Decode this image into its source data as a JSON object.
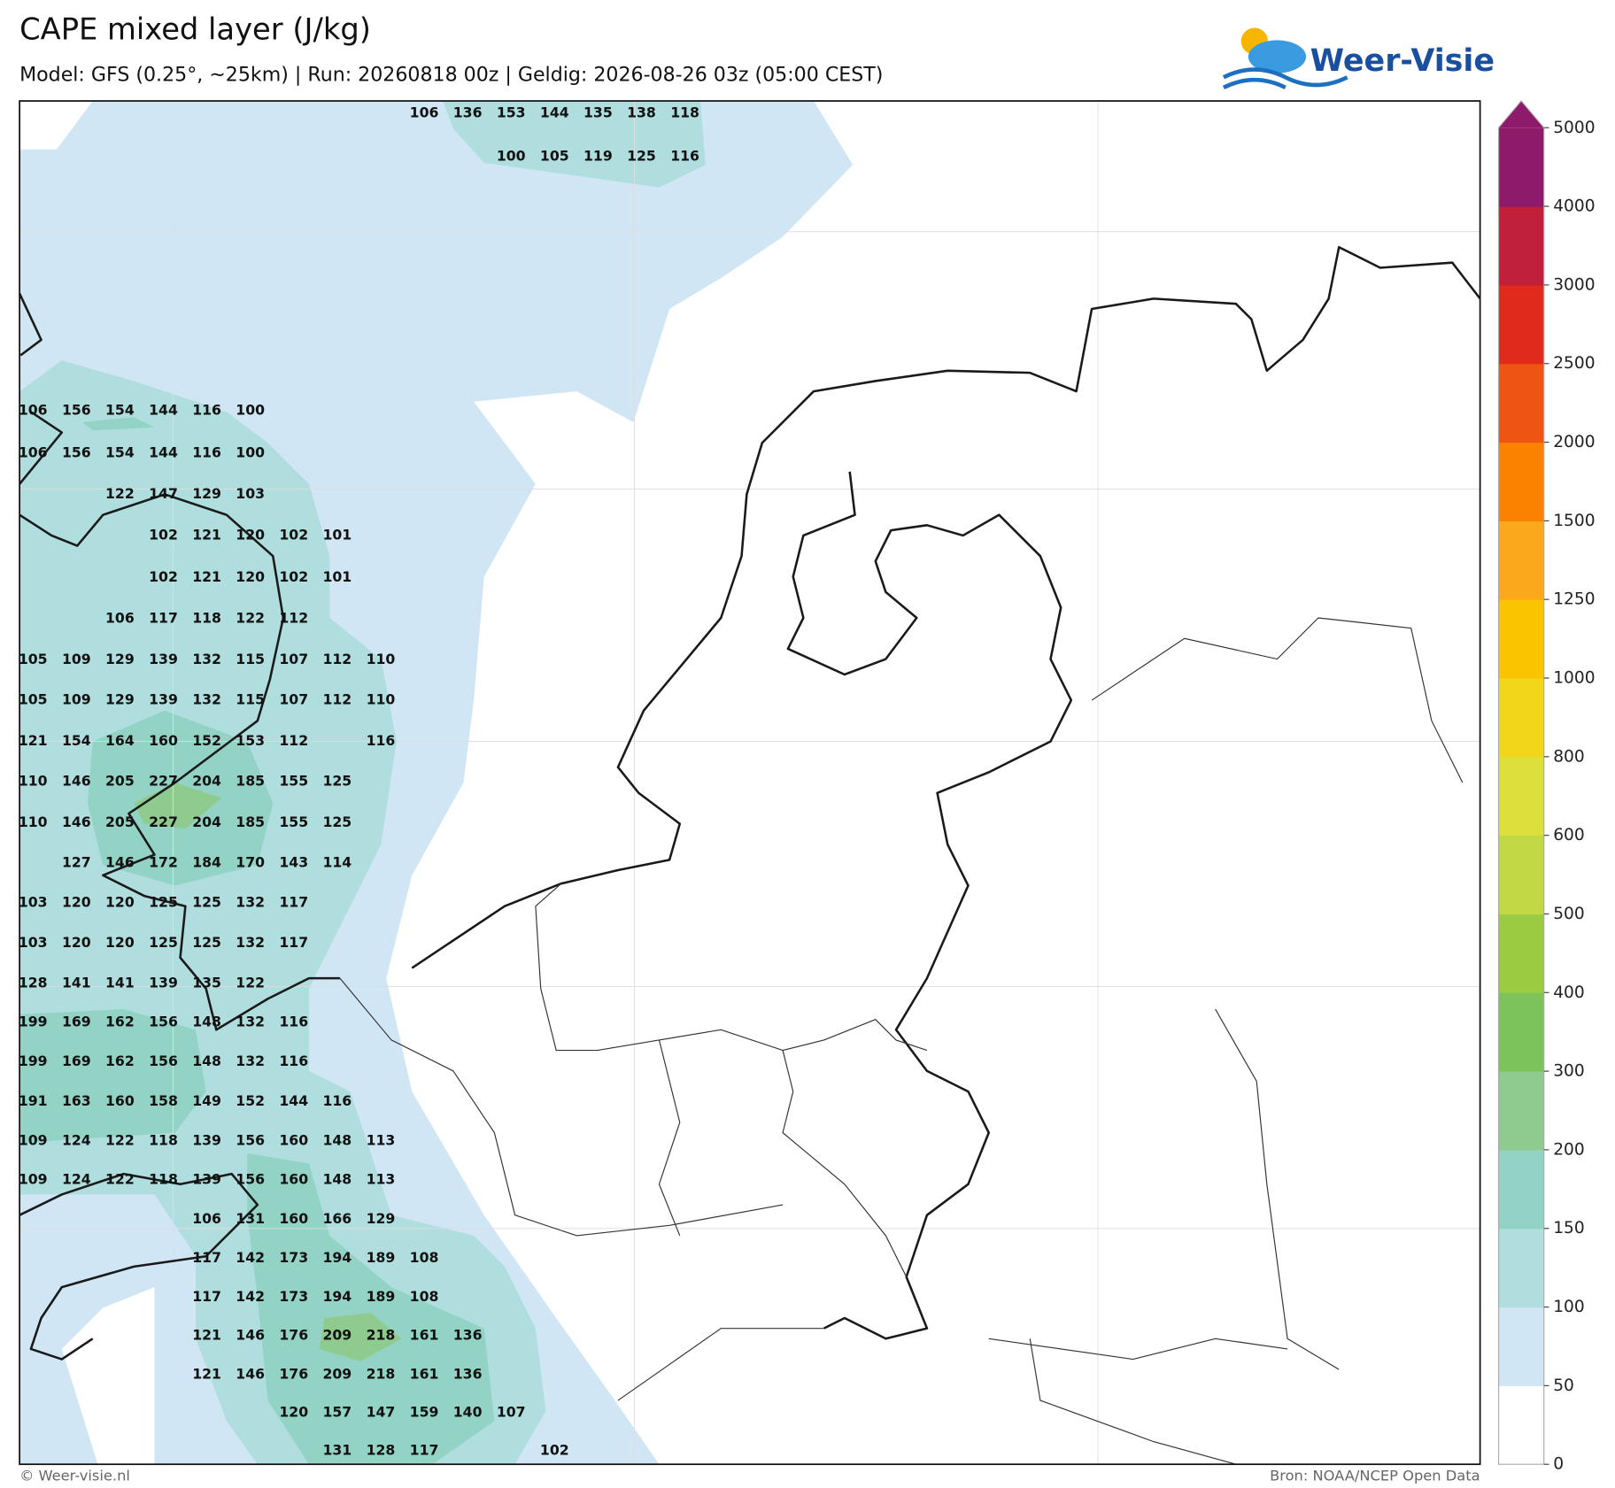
{
  "header": {
    "title": "CAPE mixed layer (J/kg)",
    "subtitle": "Model: GFS (0.25°, ~25km)  |  Run: 20260818 00z  |  Geldig: 2026-08-26 03z (05:00 CEST)",
    "logo": "Weer-Visie"
  },
  "map": {
    "labels": [
      [
        null,
        null,
        null,
        null,
        null,
        null,
        null,
        null,
        null,
        106,
        136,
        153,
        144,
        135,
        138,
        118
      ],
      [
        null,
        null,
        null,
        null,
        null,
        null,
        null,
        null,
        null,
        null,
        null,
        100,
        105,
        119,
        125,
        116
      ],
      [
        106,
        156,
        154,
        144,
        116,
        100
      ],
      [
        106,
        156,
        154,
        144,
        116,
        100
      ],
      [
        null,
        null,
        122,
        147,
        129,
        103
      ],
      [
        null,
        null,
        null,
        102,
        121,
        120,
        102,
        101
      ],
      [
        null,
        null,
        null,
        102,
        121,
        120,
        102,
        101
      ],
      [
        null,
        null,
        106,
        117,
        118,
        122,
        112
      ],
      [
        105,
        109,
        129,
        139,
        132,
        115,
        107,
        112,
        110
      ],
      [
        105,
        109,
        129,
        139,
        132,
        115,
        107,
        112,
        110
      ],
      [
        121,
        154,
        164,
        160,
        152,
        153,
        112,
        null,
        116
      ],
      [
        110,
        146,
        205,
        227,
        204,
        185,
        155,
        125
      ],
      [
        110,
        146,
        205,
        227,
        204,
        185,
        155,
        125
      ],
      [
        null,
        127,
        146,
        172,
        184,
        170,
        143,
        114
      ],
      [
        103,
        120,
        120,
        125,
        125,
        132,
        117
      ],
      [
        103,
        120,
        120,
        125,
        125,
        132,
        117
      ],
      [
        128,
        141,
        141,
        139,
        135,
        122
      ],
      [
        199,
        169,
        162,
        156,
        148,
        132,
        116
      ],
      [
        199,
        169,
        162,
        156,
        148,
        132,
        116
      ],
      [
        191,
        163,
        160,
        158,
        149,
        152,
        144,
        116
      ],
      [
        109,
        124,
        122,
        118,
        139,
        156,
        160,
        148,
        113
      ],
      [
        109,
        124,
        122,
        118,
        139,
        156,
        160,
        148,
        113
      ],
      [
        null,
        null,
        null,
        null,
        106,
        131,
        160,
        166,
        129
      ],
      [
        null,
        null,
        null,
        null,
        117,
        142,
        173,
        194,
        189,
        108
      ],
      [
        null,
        null,
        null,
        null,
        117,
        142,
        173,
        194,
        189,
        108
      ],
      [
        null,
        null,
        null,
        null,
        121,
        146,
        176,
        209,
        218,
        161,
        136
      ],
      [
        null,
        null,
        null,
        null,
        121,
        146,
        176,
        209,
        218,
        161,
        136
      ],
      [
        null,
        null,
        null,
        null,
        null,
        null,
        120,
        157,
        147,
        159,
        140,
        107
      ],
      [
        null,
        null,
        null,
        null,
        null,
        null,
        null,
        131,
        128,
        117,
        null,
        null,
        102
      ]
    ]
  },
  "colorbar": {
    "levels": [
      0,
      50,
      100,
      150,
      200,
      300,
      400,
      500,
      600,
      800,
      1000,
      1250,
      1500,
      2000,
      2500,
      3000,
      4000,
      5000
    ],
    "colors": [
      "#ffffff",
      "#d0e6f5",
      "#b0dede",
      "#93d3c5",
      "#8fcb8e",
      "#7cc35a",
      "#9bcb40",
      "#c2d845",
      "#dde03c",
      "#f2d61a",
      "#fbc400",
      "#fba81c",
      "#fa8200",
      "#ee5512",
      "#e02b1c",
      "#c0203a",
      "#8e1a6b"
    ]
  },
  "footer": {
    "left": "© Weer-visie.nl",
    "right": "Bron: NOAA/NCEP Open Data"
  }
}
